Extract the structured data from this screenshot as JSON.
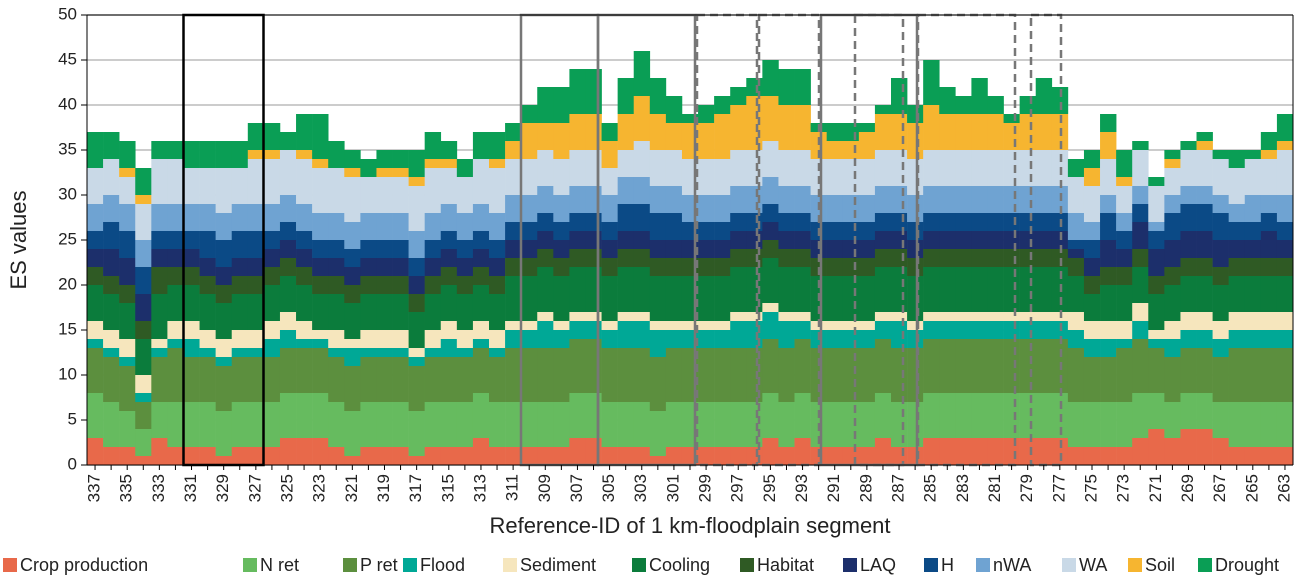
{
  "chart_data": {
    "type": "stacked_bar",
    "y_label": "ES values",
    "x_label": "Reference-ID of 1 km-floodplain segment",
    "categories": [
      "337",
      null,
      "335",
      null,
      "333",
      null,
      "331",
      null,
      "329",
      null,
      "327",
      null,
      "325",
      null,
      "323",
      null,
      "321",
      null,
      "319",
      null,
      "317",
      null,
      "315",
      null,
      "313",
      null,
      "311",
      null,
      "309",
      null,
      "307",
      null,
      "305",
      null,
      "303",
      null,
      "301",
      null,
      "299",
      null,
      "297",
      null,
      "295",
      null,
      "293",
      null,
      "291",
      null,
      "289",
      null,
      "287",
      null,
      "285",
      null,
      "283",
      null,
      "281",
      null,
      "279",
      null,
      "277",
      null,
      "275",
      null,
      "273",
      null,
      "271",
      null,
      "269",
      null,
      "267",
      null,
      "265",
      null,
      "263"
    ],
    "ylim": [
      0,
      50
    ],
    "yticks": [
      0,
      5,
      10,
      15,
      20,
      25,
      30,
      35,
      40,
      45,
      50
    ],
    "grid": true,
    "series": [
      {
        "name": "Crop production",
        "color": "#e8694a",
        "values": [
          3,
          2,
          2,
          1,
          3,
          2,
          2,
          2,
          1,
          2,
          2,
          2,
          3,
          3,
          3,
          2,
          1,
          2,
          2,
          2,
          1,
          2,
          2,
          2,
          3,
          2,
          2,
          2,
          2,
          2,
          3,
          3,
          2,
          2,
          2,
          1,
          2,
          2,
          2,
          2,
          2,
          2,
          3,
          2,
          3,
          2,
          2,
          2,
          2,
          3,
          2,
          2,
          3,
          3,
          3,
          3,
          3,
          3,
          3,
          3,
          3,
          2,
          2,
          2,
          2,
          3,
          4,
          3,
          4,
          4,
          3,
          2,
          2,
          2,
          2
        ]
      },
      {
        "name": "N ret",
        "color": "#66bb5f",
        "values": [
          5,
          5,
          4,
          3,
          4,
          5,
          5,
          5,
          5,
          5,
          5,
          5,
          5,
          5,
          5,
          5,
          5,
          5,
          5,
          5,
          5,
          5,
          5,
          5,
          5,
          5,
          5,
          5,
          5,
          5,
          5,
          5,
          5,
          5,
          5,
          5,
          5,
          5,
          5,
          5,
          5,
          5,
          5,
          5,
          5,
          5,
          5,
          5,
          5,
          5,
          5,
          5,
          5,
          5,
          5,
          5,
          5,
          5,
          5,
          5,
          5,
          5,
          5,
          5,
          5,
          5,
          4,
          4,
          4,
          4,
          4,
          5,
          5,
          5,
          5
        ]
      },
      {
        "name": "P ret",
        "color": "#5c8f3e",
        "values": [
          5,
          5,
          5,
          3,
          5,
          6,
          5,
          5,
          5,
          5,
          5,
          5,
          5,
          5,
          5,
          5,
          5,
          5,
          5,
          5,
          5,
          5,
          5,
          5,
          5,
          5,
          6,
          6,
          6,
          6,
          6,
          6,
          6,
          6,
          6,
          6,
          6,
          6,
          6,
          6,
          6,
          6,
          6,
          6,
          6,
          6,
          6,
          6,
          6,
          6,
          6,
          6,
          6,
          6,
          6,
          6,
          6,
          6,
          6,
          6,
          6,
          6,
          5,
          5,
          6,
          6,
          5,
          5,
          5,
          5,
          5,
          6,
          6,
          6,
          6
        ]
      },
      {
        "name": "Flood",
        "color": "#00a896",
        "values": [
          1,
          1,
          1,
          1,
          1,
          1,
          2,
          1,
          1,
          1,
          1,
          2,
          2,
          1,
          1,
          1,
          2,
          1,
          1,
          1,
          1,
          1,
          2,
          1,
          1,
          1,
          2,
          2,
          3,
          2,
          2,
          2,
          2,
          3,
          3,
          3,
          2,
          2,
          2,
          2,
          3,
          3,
          3,
          3,
          2,
          2,
          2,
          2,
          2,
          2,
          3,
          2,
          2,
          2,
          2,
          2,
          2,
          2,
          2,
          2,
          2,
          2,
          2,
          2,
          1,
          2,
          1,
          2,
          2,
          2,
          2,
          2,
          2,
          2,
          2
        ]
      },
      {
        "name": "Sediment",
        "color": "#f6e6bd",
        "values": [
          2,
          2,
          2,
          2,
          1,
          2,
          2,
          2,
          2,
          2,
          2,
          2,
          2,
          2,
          1,
          2,
          1,
          2,
          2,
          2,
          1,
          2,
          2,
          2,
          2,
          2,
          1,
          1,
          1,
          1,
          1,
          1,
          1,
          1,
          1,
          1,
          1,
          1,
          1,
          1,
          1,
          1,
          1,
          1,
          1,
          1,
          1,
          1,
          1,
          1,
          1,
          1,
          1,
          1,
          1,
          1,
          1,
          1,
          1,
          1,
          1,
          2,
          2,
          2,
          2,
          2,
          1,
          2,
          2,
          2,
          2,
          2,
          2,
          2,
          2
        ]
      },
      {
        "name": "Cooling",
        "color": "#0b7c3c",
        "values": [
          4,
          4,
          4,
          4,
          5,
          4,
          4,
          4,
          4,
          4,
          4,
          4,
          4,
          4,
          4,
          4,
          4,
          4,
          4,
          4,
          4,
          4,
          4,
          4,
          4,
          4,
          5,
          5,
          5,
          5,
          5,
          5,
          5,
          5,
          5,
          5,
          5,
          5,
          5,
          5,
          5,
          5,
          5,
          5,
          5,
          5,
          5,
          5,
          5,
          5,
          5,
          5,
          5,
          5,
          5,
          5,
          5,
          5,
          5,
          5,
          5,
          4,
          3,
          4,
          4,
          4,
          4,
          4,
          4,
          4,
          4,
          4,
          4,
          4,
          4
        ]
      },
      {
        "name": "Habitat",
        "color": "#2f5a24",
        "values": [
          2,
          2,
          2,
          2,
          3,
          2,
          2,
          2,
          2,
          2,
          2,
          2,
          2,
          2,
          2,
          2,
          2,
          2,
          2,
          2,
          2,
          2,
          2,
          2,
          2,
          2,
          2,
          2,
          2,
          2,
          2,
          2,
          2,
          2,
          2,
          2,
          2,
          2,
          2,
          2,
          2,
          2,
          2,
          2,
          2,
          2,
          2,
          2,
          2,
          2,
          2,
          2,
          2,
          2,
          2,
          2,
          2,
          2,
          2,
          2,
          2,
          2,
          2,
          2,
          2,
          2,
          2,
          2,
          2,
          2,
          2,
          2,
          2,
          2,
          2
        ]
      },
      {
        "name": "LAQ",
        "color": "#1c2f6b",
        "values": [
          2,
          3,
          3,
          3,
          2,
          2,
          2,
          2,
          2,
          2,
          2,
          2,
          2,
          2,
          2,
          2,
          2,
          2,
          2,
          2,
          2,
          2,
          2,
          2,
          2,
          2,
          2,
          2,
          2,
          2,
          2,
          2,
          2,
          2,
          2,
          2,
          2,
          2,
          2,
          2,
          2,
          2,
          2,
          2,
          2,
          2,
          2,
          2,
          2,
          2,
          2,
          2,
          2,
          2,
          2,
          2,
          2,
          2,
          2,
          2,
          2,
          1,
          2,
          3,
          2,
          3,
          3,
          3,
          3,
          3,
          3,
          2,
          2,
          3,
          2
        ]
      },
      {
        "name": "H",
        "color": "#0b4a86",
        "values": [
          2,
          3,
          3,
          3,
          2,
          2,
          2,
          3,
          3,
          3,
          3,
          2,
          2,
          2,
          2,
          2,
          2,
          2,
          2,
          2,
          2,
          2,
          2,
          2,
          2,
          2,
          2,
          2,
          2,
          2,
          2,
          2,
          2,
          3,
          3,
          3,
          3,
          2,
          2,
          2,
          2,
          2,
          2,
          2,
          2,
          2,
          2,
          2,
          2,
          2,
          2,
          2,
          2,
          2,
          2,
          2,
          2,
          2,
          2,
          2,
          2,
          1,
          2,
          3,
          2,
          2,
          2,
          3,
          3,
          3,
          3,
          2,
          2,
          2,
          2
        ]
      },
      {
        "name": "nWA",
        "color": "#6fa3d2",
        "values": [
          3,
          3,
          3,
          3,
          3,
          3,
          3,
          3,
          3,
          3,
          3,
          3,
          3,
          3,
          3,
          3,
          3,
          3,
          3,
          3,
          3,
          3,
          3,
          3,
          3,
          3,
          3,
          3,
          3,
          3,
          3,
          3,
          3,
          3,
          3,
          3,
          3,
          3,
          3,
          3,
          3,
          3,
          3,
          3,
          3,
          3,
          3,
          3,
          3,
          3,
          3,
          3,
          3,
          3,
          3,
          3,
          3,
          3,
          3,
          3,
          3,
          3,
          2,
          2,
          2,
          2,
          1,
          2,
          2,
          2,
          2,
          2,
          3,
          2,
          3
        ]
      },
      {
        "name": "WA",
        "color": "#c9d9e7",
        "values": [
          4,
          4,
          3,
          4,
          5,
          5,
          4,
          4,
          5,
          4,
          5,
          5,
          5,
          5,
          5,
          5,
          5,
          4,
          4,
          4,
          5,
          5,
          4,
          4,
          5,
          5,
          4,
          4,
          4,
          4,
          4,
          4,
          3,
          3,
          4,
          4,
          4,
          4,
          4,
          4,
          4,
          4,
          4,
          4,
          4,
          4,
          4,
          4,
          4,
          4,
          4,
          4,
          4,
          4,
          4,
          4,
          4,
          4,
          4,
          4,
          4,
          4,
          4,
          4,
          3,
          4,
          4,
          3,
          4,
          4,
          4,
          4,
          4,
          4,
          5
        ]
      },
      {
        "name": "Soil",
        "color": "#f6b530",
        "values": [
          0,
          0,
          1,
          1,
          0,
          0,
          0,
          0,
          0,
          0,
          1,
          1,
          0,
          1,
          1,
          0,
          1,
          0,
          1,
          1,
          1,
          1,
          1,
          0,
          0,
          1,
          2,
          4,
          3,
          4,
          4,
          4,
          3,
          4,
          5,
          4,
          3,
          4,
          4,
          5,
          5,
          6,
          5,
          5,
          5,
          3,
          2,
          2,
          3,
          4,
          4,
          4,
          5,
          4,
          4,
          4,
          4,
          3,
          4,
          4,
          4,
          0,
          2,
          3,
          1,
          0,
          0,
          1,
          0,
          1,
          0,
          0,
          0,
          1,
          1
        ]
      },
      {
        "name": "Drought",
        "color": "#0a9e55",
        "values": [
          4,
          3,
          3,
          3,
          2,
          2,
          3,
          3,
          3,
          3,
          3,
          3,
          2,
          4,
          5,
          3,
          2,
          2,
          2,
          2,
          3,
          3,
          2,
          2,
          3,
          3,
          2,
          2,
          4,
          4,
          5,
          5,
          2,
          4,
          5,
          4,
          3,
          1,
          2,
          2,
          2,
          2,
          4,
          4,
          4,
          1,
          2,
          2,
          1,
          1,
          4,
          2,
          5,
          3,
          2,
          4,
          2,
          1,
          2,
          4,
          3,
          2,
          2,
          2,
          3,
          1,
          1,
          1,
          1,
          1,
          1,
          2,
          1,
          2,
          3
        ]
      }
    ]
  }
}
